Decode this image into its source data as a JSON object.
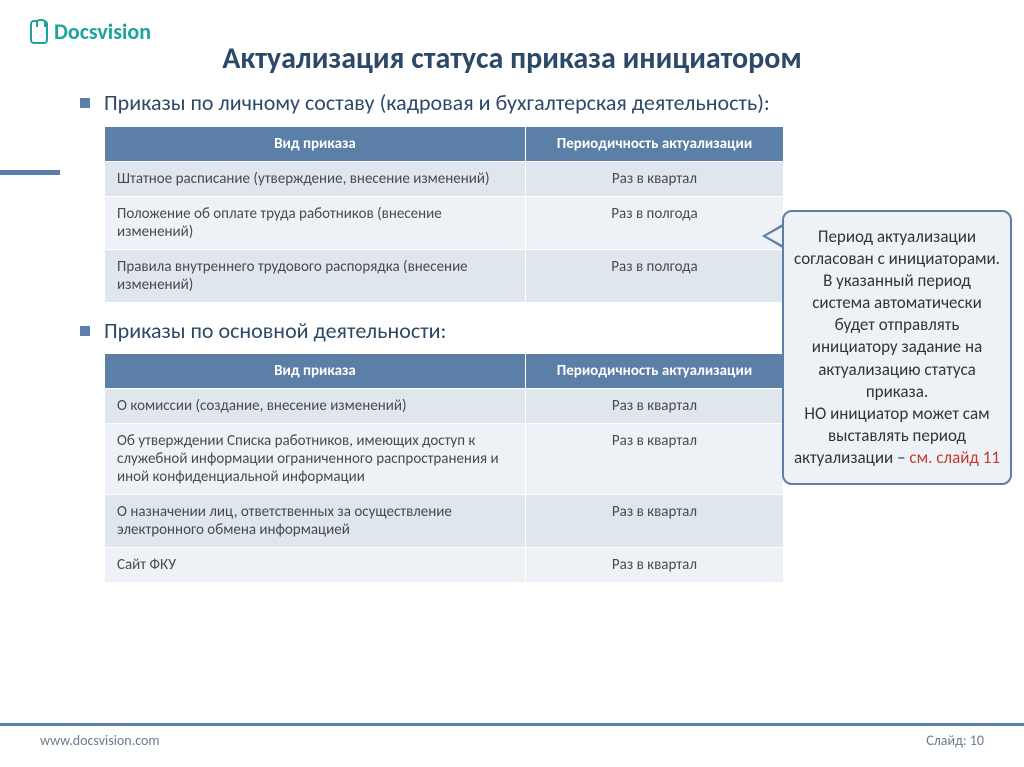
{
  "logo_text": "Docsvision",
  "title": "Актуализация статуса приказа инициатором",
  "bullet1": "Приказы по личному составу (кадровая и бухгалтерская деятельность):",
  "bullet2": "Приказы по основной деятельности:",
  "table_headers": {
    "col1": "Вид приказа",
    "col2": "Периодичность актуализации"
  },
  "table1": {
    "rows": [
      {
        "c1": "Штатное расписание (утверждение, внесение изменений)",
        "c2": "Раз в квартал"
      },
      {
        "c1": "Положение об оплате труда работников (внесение изменений)",
        "c2": "Раз в полгода"
      },
      {
        "c1": "Правила внутреннего трудового распорядка (внесение изменений)",
        "c2": "Раз в полгода"
      }
    ]
  },
  "table2": {
    "rows": [
      {
        "c1": "О комиссии (создание, внесение изменений)",
        "c2": "Раз в квартал"
      },
      {
        "c1": "Об утверждении Списка работников, имеющих доступ к служебной информации ограниченного распространения и иной конфиденциальной информации",
        "c2": "Раз в квартал"
      },
      {
        "c1": "О назначении лиц, ответственных за осуществление электронного обмена информацией",
        "c2": "Раз в квартал"
      },
      {
        "c1": "Сайт ФКУ",
        "c2": "Раз в квартал"
      }
    ]
  },
  "callout": {
    "part1": "Период актуализации согласован с инициаторами.",
    "part2": "В указанный период система автоматически будет отправлять инициатору задание на актуализацию статуса приказа.",
    "part3": "НО инициатор может сам выставлять период актуализации – ",
    "link": "см. слайд 11"
  },
  "footer": {
    "url": "www.docsvision.com",
    "slide": "Слайд: 10"
  },
  "colors": {
    "accent": "#5b7fa6",
    "logo": "#1ba39c",
    "title": "#2c4967",
    "table_header_bg": "#5b7fa6",
    "row_odd": "#dfe6ee",
    "row_even": "#eef2f6",
    "callout_bg": "#eef2f6",
    "callout_border": "#5b7fa6",
    "link_red": "#c43c2d"
  }
}
